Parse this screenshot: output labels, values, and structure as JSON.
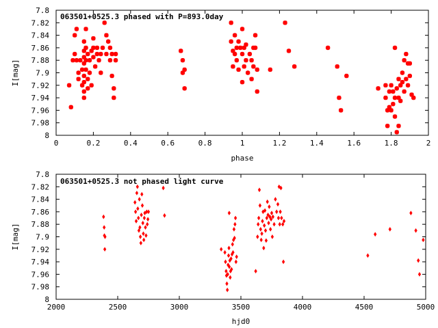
{
  "chart_data": [
    {
      "type": "scatter",
      "title": "063501+0525.3 phased with P=893.0day",
      "xlabel": "phase",
      "ylabel": "I[mag]",
      "xlim": [
        0,
        2
      ],
      "ylim": [
        7.8,
        8.0
      ],
      "y_inverted": true,
      "grid": false,
      "marker": "star",
      "color": "#ff0000",
      "xticks": [
        "0",
        "0.2",
        "0.4",
        "0.6",
        "0.8",
        "1",
        "1.2",
        "1.4",
        "1.6",
        "1.8",
        "2"
      ],
      "yticks": [
        "7.8",
        "7.82",
        "7.84",
        "7.86",
        "7.88",
        "7.9",
        "7.92",
        "7.94",
        "7.96",
        "7.98",
        "8"
      ],
      "points": [
        [
          0.07,
          7.92
        ],
        [
          0.08,
          7.955
        ],
        [
          0.09,
          7.88
        ],
        [
          0.1,
          7.84
        ],
        [
          0.1,
          7.87
        ],
        [
          0.11,
          7.83
        ],
        [
          0.11,
          7.88
        ],
        [
          0.12,
          7.9
        ],
        [
          0.12,
          7.91
        ],
        [
          0.13,
          7.88
        ],
        [
          0.14,
          7.92
        ],
        [
          0.14,
          7.895
        ],
        [
          0.15,
          7.85
        ],
        [
          0.15,
          7.865
        ],
        [
          0.15,
          7.875
        ],
        [
          0.15,
          7.885
        ],
        [
          0.15,
          7.905
        ],
        [
          0.15,
          7.915
        ],
        [
          0.15,
          7.93
        ],
        [
          0.15,
          7.94
        ],
        [
          0.16,
          7.83
        ],
        [
          0.16,
          7.86
        ],
        [
          0.16,
          7.88
        ],
        [
          0.16,
          7.895
        ],
        [
          0.17,
          7.87
        ],
        [
          0.17,
          7.91
        ],
        [
          0.17,
          7.925
        ],
        [
          0.18,
          7.88
        ],
        [
          0.18,
          7.9
        ],
        [
          0.19,
          7.865
        ],
        [
          0.19,
          7.92
        ],
        [
          0.2,
          7.845
        ],
        [
          0.2,
          7.86
        ],
        [
          0.2,
          7.875
        ],
        [
          0.21,
          7.89
        ],
        [
          0.22,
          7.86
        ],
        [
          0.22,
          7.87
        ],
        [
          0.23,
          7.88
        ],
        [
          0.24,
          7.87
        ],
        [
          0.24,
          7.9
        ],
        [
          0.25,
          7.86
        ],
        [
          0.26,
          7.82
        ],
        [
          0.27,
          7.84
        ],
        [
          0.27,
          7.87
        ],
        [
          0.28,
          7.85
        ],
        [
          0.29,
          7.86
        ],
        [
          0.29,
          7.88
        ],
        [
          0.3,
          7.87
        ],
        [
          0.3,
          7.905
        ],
        [
          0.31,
          7.925
        ],
        [
          0.31,
          7.94
        ],
        [
          0.32,
          7.87
        ],
        [
          0.32,
          7.88
        ],
        [
          0.67,
          7.865
        ],
        [
          0.68,
          7.88
        ],
        [
          0.68,
          7.9
        ],
        [
          0.69,
          7.925
        ],
        [
          0.69,
          7.895
        ],
        [
          0.94,
          7.82
        ],
        [
          0.94,
          7.85
        ],
        [
          0.95,
          7.865
        ],
        [
          0.95,
          7.89
        ],
        [
          0.96,
          7.84
        ],
        [
          0.96,
          7.87
        ],
        [
          0.97,
          7.86
        ],
        [
          0.97,
          7.88
        ],
        [
          0.98,
          7.85
        ],
        [
          0.98,
          7.895
        ],
        [
          0.99,
          7.86
        ],
        [
          1.0,
          7.83
        ],
        [
          1.0,
          7.87
        ],
        [
          1.0,
          7.915
        ],
        [
          1.01,
          7.86
        ],
        [
          1.01,
          7.89
        ],
        [
          1.02,
          7.855
        ],
        [
          1.02,
          7.88
        ],
        [
          1.03,
          7.9
        ],
        [
          1.04,
          7.87
        ],
        [
          1.05,
          7.88
        ],
        [
          1.05,
          7.91
        ],
        [
          1.06,
          7.86
        ],
        [
          1.06,
          7.89
        ],
        [
          1.07,
          7.84
        ],
        [
          1.07,
          7.86
        ],
        [
          1.08,
          7.93
        ],
        [
          1.08,
          7.895
        ],
        [
          1.15,
          7.895
        ],
        [
          1.23,
          7.82
        ],
        [
          1.25,
          7.865
        ],
        [
          1.28,
          7.89
        ],
        [
          1.46,
          7.86
        ],
        [
          1.51,
          7.89
        ],
        [
          1.52,
          7.94
        ],
        [
          1.53,
          7.96
        ],
        [
          1.56,
          7.905
        ],
        [
          1.73,
          7.925
        ],
        [
          1.77,
          7.92
        ],
        [
          1.77,
          7.94
        ],
        [
          1.78,
          7.96
        ],
        [
          1.78,
          7.985
        ],
        [
          1.79,
          7.955
        ],
        [
          1.79,
          7.93
        ],
        [
          1.8,
          7.96
        ],
        [
          1.8,
          7.92
        ],
        [
          1.81,
          7.95
        ],
        [
          1.81,
          7.93
        ],
        [
          1.82,
          7.86
        ],
        [
          1.82,
          7.94
        ],
        [
          1.82,
          7.97
        ],
        [
          1.83,
          7.925
        ],
        [
          1.83,
          7.995
        ],
        [
          1.84,
          7.985
        ],
        [
          1.84,
          7.94
        ],
        [
          1.84,
          7.91
        ],
        [
          1.85,
          7.92
        ],
        [
          1.85,
          7.945
        ],
        [
          1.86,
          7.9
        ],
        [
          1.86,
          7.915
        ],
        [
          1.87,
          7.93
        ],
        [
          1.87,
          7.88
        ],
        [
          1.88,
          7.91
        ],
        [
          1.88,
          7.87
        ],
        [
          1.89,
          7.885
        ],
        [
          1.89,
          7.92
        ],
        [
          1.9,
          7.885
        ],
        [
          1.9,
          7.905
        ],
        [
          1.91,
          7.935
        ],
        [
          1.92,
          7.94
        ]
      ]
    },
    {
      "type": "scatter",
      "title": "063501+0525.3 not phased light curve",
      "xlabel": "hjd0",
      "ylabel": "I[mag]",
      "xlim": [
        2000,
        5000
      ],
      "ylim": [
        7.8,
        8.0
      ],
      "y_inverted": true,
      "grid": false,
      "marker": "diamond",
      "color": "#ff0000",
      "xticks": [
        "2000",
        "2500",
        "3000",
        "3500",
        "4000",
        "4500",
        "5000"
      ],
      "yticks": [
        "7.8",
        "7.82",
        "7.84",
        "7.86",
        "7.88",
        "7.9",
        "7.92",
        "7.94",
        "7.96",
        "7.98",
        "8"
      ],
      "points": [
        [
          2385,
          7.868
        ],
        [
          2390,
          7.885
        ],
        [
          2392,
          7.898
        ],
        [
          2395,
          7.92
        ],
        [
          2397,
          7.9
        ],
        [
          2640,
          7.845
        ],
        [
          2645,
          7.86
        ],
        [
          2650,
          7.875
        ],
        [
          2655,
          7.83
        ],
        [
          2660,
          7.82
        ],
        [
          2663,
          7.855
        ],
        [
          2668,
          7.87
        ],
        [
          2672,
          7.89
        ],
        [
          2676,
          7.84
        ],
        [
          2680,
          7.885
        ],
        [
          2684,
          7.9
        ],
        [
          2688,
          7.91
        ],
        [
          2692,
          7.865
        ],
        [
          2696,
          7.832
        ],
        [
          2700,
          7.85
        ],
        [
          2704,
          7.878
        ],
        [
          2708,
          7.895
        ],
        [
          2712,
          7.905
        ],
        [
          2716,
          7.87
        ],
        [
          2720,
          7.862
        ],
        [
          2725,
          7.885
        ],
        [
          2730,
          7.898
        ],
        [
          2735,
          7.86
        ],
        [
          2740,
          7.88
        ],
        [
          2745,
          7.872
        ],
        [
          2750,
          7.86
        ],
        [
          2870,
          7.822
        ],
        [
          2880,
          7.866
        ],
        [
          3340,
          7.92
        ],
        [
          3370,
          7.925
        ],
        [
          3375,
          7.94
        ],
        [
          3380,
          7.955
        ],
        [
          3383,
          7.962
        ],
        [
          3386,
          7.975
        ],
        [
          3390,
          7.985
        ],
        [
          3393,
          7.96
        ],
        [
          3396,
          7.945
        ],
        [
          3400,
          7.93
        ],
        [
          3403,
          7.918
        ],
        [
          3406,
          7.948
        ],
        [
          3410,
          7.938
        ],
        [
          3413,
          7.965
        ],
        [
          3416,
          7.955
        ],
        [
          3420,
          7.935
        ],
        [
          3424,
          7.952
        ],
        [
          3428,
          7.928
        ],
        [
          3432,
          7.912
        ],
        [
          3436,
          7.925
        ],
        [
          3440,
          7.905
        ],
        [
          3444,
          7.888
        ],
        [
          3448,
          7.902
        ],
        [
          3452,
          7.88
        ],
        [
          3456,
          7.87
        ],
        [
          3460,
          7.94
        ],
        [
          3465,
          7.932
        ],
        [
          3405,
          7.862
        ],
        [
          3620,
          7.955
        ],
        [
          3635,
          7.9
        ],
        [
          3640,
          7.88
        ],
        [
          3645,
          7.87
        ],
        [
          3650,
          7.825
        ],
        [
          3655,
          7.85
        ],
        [
          3660,
          7.888
        ],
        [
          3665,
          7.905
        ],
        [
          3670,
          7.895
        ],
        [
          3675,
          7.875
        ],
        [
          3680,
          7.86
        ],
        [
          3685,
          7.918
        ],
        [
          3690,
          7.882
        ],
        [
          3695,
          7.858
        ],
        [
          3700,
          7.89
        ],
        [
          3705,
          7.906
        ],
        [
          3710,
          7.87
        ],
        [
          3715,
          7.844
        ],
        [
          3720,
          7.865
        ],
        [
          3725,
          7.878
        ],
        [
          3730,
          7.852
        ],
        [
          3735,
          7.868
        ],
        [
          3740,
          7.888
        ],
        [
          3745,
          7.872
        ],
        [
          3750,
          7.862
        ],
        [
          3755,
          7.9
        ],
        [
          3760,
          7.868
        ],
        [
          3770,
          7.88
        ],
        [
          3780,
          7.84
        ],
        [
          3790,
          7.86
        ],
        [
          3800,
          7.848
        ],
        [
          3805,
          7.87
        ],
        [
          3810,
          7.82
        ],
        [
          3815,
          7.88
        ],
        [
          3820,
          7.86
        ],
        [
          3825,
          7.822
        ],
        [
          3830,
          7.87
        ],
        [
          3840,
          7.88
        ],
        [
          3845,
          7.94
        ],
        [
          3850,
          7.875
        ],
        [
          4530,
          7.93
        ],
        [
          4590,
          7.896
        ],
        [
          4710,
          7.888
        ],
        [
          4880,
          7.862
        ],
        [
          4920,
          7.89
        ],
        [
          4940,
          7.938
        ],
        [
          4950,
          7.96
        ],
        [
          4980,
          7.905
        ]
      ]
    }
  ]
}
